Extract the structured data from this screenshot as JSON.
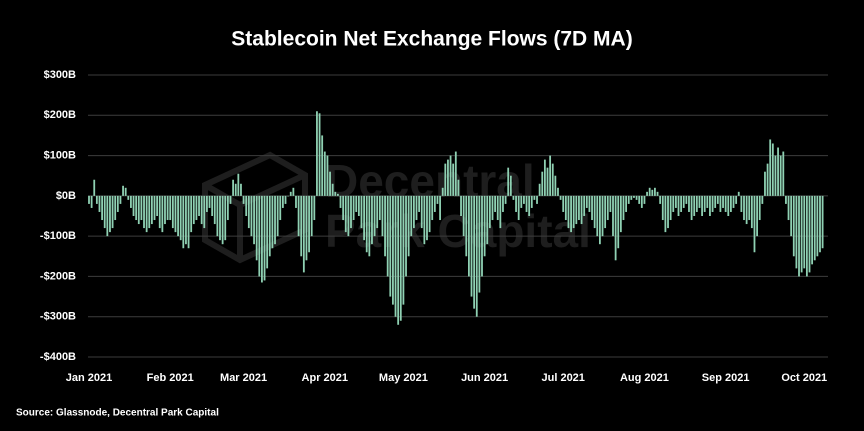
{
  "chart_data": {
    "type": "bar",
    "title": "Stablecoin Net Exchange Flows (7D MA)",
    "watermark": [
      "Decentral",
      "Park Capital"
    ],
    "source": "Source: Glassnode, Decentral Park Capital",
    "color": "#8fd1b3",
    "grid": true,
    "ylim": [
      -400,
      300
    ],
    "yticks": [
      {
        "value": -400,
        "label": "-$400B"
      },
      {
        "value": -300,
        "label": "-$300B"
      },
      {
        "value": -200,
        "label": "-$200B"
      },
      {
        "value": -100,
        "label": "-$100B"
      },
      {
        "value": 0,
        "label": "$0B"
      },
      {
        "value": 100,
        "label": "$100B"
      },
      {
        "value": 200,
        "label": "$200B"
      },
      {
        "value": 300,
        "label": "$300B"
      }
    ],
    "categories": [
      "Jan 2021",
      null,
      null,
      null,
      null,
      null,
      null,
      null,
      null,
      null,
      null,
      null,
      null,
      null,
      null,
      null,
      null,
      null,
      null,
      null,
      null,
      null,
      null,
      null,
      null,
      null,
      null,
      null,
      null,
      null,
      null,
      "Feb 2021",
      null,
      null,
      null,
      null,
      null,
      null,
      null,
      null,
      null,
      null,
      null,
      null,
      null,
      null,
      null,
      null,
      null,
      null,
      null,
      null,
      null,
      null,
      null,
      null,
      null,
      null,
      null,
      "Mar 2021",
      null,
      null,
      null,
      null,
      null,
      null,
      null,
      null,
      null,
      null,
      null,
      null,
      null,
      null,
      null,
      null,
      null,
      null,
      null,
      null,
      null,
      null,
      null,
      null,
      null,
      null,
      null,
      null,
      null,
      null,
      "Apr 2021",
      null,
      null,
      null,
      null,
      null,
      null,
      null,
      null,
      null,
      null,
      null,
      null,
      null,
      null,
      null,
      null,
      null,
      null,
      null,
      null,
      null,
      null,
      null,
      null,
      null,
      null,
      null,
      null,
      null,
      "May 2021",
      null,
      null,
      null,
      null,
      null,
      null,
      null,
      null,
      null,
      null,
      null,
      null,
      null,
      null,
      null,
      null,
      null,
      null,
      null,
      null,
      null,
      null,
      null,
      null,
      null,
      null,
      null,
      null,
      null,
      null,
      "Jun 2021",
      null,
      null,
      null,
      null,
      null,
      null,
      null,
      null,
      null,
      null,
      null,
      null,
      null,
      null,
      null,
      null,
      null,
      null,
      null,
      null,
      null,
      null,
      null,
      null,
      null,
      null,
      null,
      null,
      null,
      "Jul 2021",
      null,
      null,
      null,
      null,
      null,
      null,
      null,
      null,
      null,
      null,
      null,
      null,
      null,
      null,
      null,
      null,
      null,
      null,
      null,
      null,
      null,
      null,
      null,
      null,
      null,
      null,
      null,
      null,
      null,
      null,
      "Aug 2021",
      null,
      null,
      null,
      null,
      null,
      null,
      null,
      null,
      null,
      null,
      null,
      null,
      null,
      null,
      null,
      null,
      null,
      null,
      null,
      null,
      null,
      null,
      null,
      null,
      null,
      null,
      null,
      null,
      null,
      null,
      "Sep 2021",
      null,
      null,
      null,
      null,
      null,
      null,
      null,
      null,
      null,
      null,
      null,
      null,
      null,
      null,
      null,
      null,
      null,
      null,
      null,
      null,
      null,
      null,
      null,
      null,
      null,
      null,
      null,
      null,
      null,
      "Oct 2021",
      null,
      null,
      null,
      null,
      null,
      null,
      null
    ],
    "values": [
      -20,
      -30,
      40,
      -20,
      -40,
      -60,
      -80,
      -100,
      -90,
      -80,
      -60,
      -40,
      -20,
      25,
      20,
      -10,
      -30,
      -50,
      -60,
      -70,
      -60,
      -80,
      -90,
      -80,
      -70,
      -60,
      -50,
      -80,
      -90,
      -70,
      -60,
      -60,
      -80,
      -90,
      -100,
      -110,
      -130,
      -120,
      -130,
      -90,
      -70,
      -60,
      -50,
      -70,
      -80,
      -40,
      -30,
      -50,
      -70,
      -100,
      -110,
      -120,
      -110,
      -60,
      -20,
      40,
      30,
      55,
      30,
      -20,
      -50,
      -80,
      -100,
      -120,
      -160,
      -200,
      -215,
      -210,
      -180,
      -150,
      -130,
      -120,
      -100,
      -60,
      -30,
      -20,
      0,
      10,
      20,
      -30,
      -100,
      -150,
      -190,
      -160,
      -140,
      -100,
      -60,
      210,
      205,
      150,
      110,
      100,
      60,
      30,
      10,
      5,
      -30,
      -60,
      -90,
      -100,
      -80,
      -60,
      -40,
      -50,
      -80,
      -110,
      -140,
      -150,
      -120,
      -100,
      -80,
      -60,
      -100,
      -150,
      -200,
      -250,
      -270,
      -300,
      -320,
      -310,
      -270,
      -200,
      -150,
      -100,
      -80,
      -60,
      -40,
      -80,
      -120,
      -110,
      -90,
      -60,
      -40,
      -20,
      -60,
      20,
      80,
      90,
      100,
      80,
      110,
      40,
      -50,
      -100,
      -150,
      -200,
      -250,
      -280,
      -300,
      -240,
      -200,
      -150,
      -120,
      -80,
      -60,
      -40,
      -60,
      -80,
      -40,
      -20,
      70,
      50,
      -10,
      -40,
      -60,
      -30,
      -20,
      -40,
      -50,
      -30,
      -10,
      -20,
      30,
      60,
      90,
      70,
      100,
      80,
      50,
      20,
      -10,
      -40,
      -60,
      -80,
      -90,
      -80,
      -70,
      -60,
      -70,
      -50,
      -30,
      -40,
      -60,
      -80,
      -100,
      -120,
      -100,
      -80,
      -60,
      -40,
      -100,
      -160,
      -130,
      -90,
      -60,
      -40,
      -20,
      -10,
      -5,
      -10,
      -20,
      -30,
      -20,
      10,
      20,
      15,
      20,
      10,
      -20,
      -60,
      -90,
      -80,
      -60,
      -40,
      -30,
      -50,
      -40,
      -30,
      -20,
      -40,
      -60,
      -50,
      -40,
      -30,
      -50,
      -40,
      -30,
      -50,
      -40,
      -30,
      -20,
      -40,
      -30,
      -40,
      -50,
      -40,
      -30,
      -20,
      10,
      -40,
      -60,
      -70,
      -60,
      -80,
      -140,
      -100,
      -60,
      -20,
      60,
      80,
      140,
      130,
      100,
      120,
      100,
      110,
      -20,
      -60,
      -100,
      -150,
      -180,
      -200,
      -190,
      -180,
      -200,
      -190,
      -170,
      -160,
      -150,
      -140,
      -130
    ]
  }
}
